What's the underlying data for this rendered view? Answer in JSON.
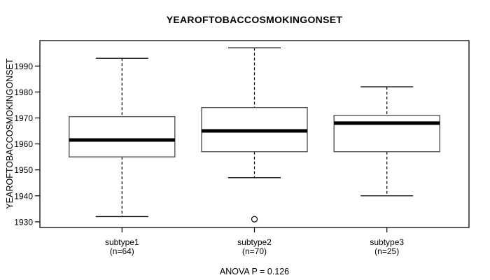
{
  "colors": {
    "foreground": "#000000",
    "background": "#ffffff"
  },
  "chart_data": {
    "type": "boxplot",
    "title": "YEAROFTOBACCOSMOKINGONSET",
    "ylabel": "YEAROFTOBACCOSMOKINGONSET",
    "annotation": "ANOVA P = 0.126",
    "ylim": [
      1927.8,
      1999.8
    ],
    "yticks": [
      1930,
      1940,
      1950,
      1960,
      1970,
      1980,
      1990
    ],
    "grid": false,
    "legend": null,
    "groups": [
      {
        "label": "subtype1",
        "sublabel": "(n=64)",
        "n": 64,
        "whisker_low": 1932,
        "q1": 1955,
        "median": 1961.5,
        "q3": 1970.5,
        "whisker_high": 1993,
        "outliers": []
      },
      {
        "label": "subtype2",
        "sublabel": "(n=70)",
        "n": 70,
        "whisker_low": 1947,
        "q1": 1957,
        "median": 1965,
        "q3": 1974,
        "whisker_high": 1997,
        "outliers": [
          1931
        ]
      },
      {
        "label": "subtype3",
        "sublabel": "(n=25)",
        "n": 25,
        "whisker_low": 1940,
        "q1": 1957,
        "median": 1968,
        "q3": 1971,
        "whisker_high": 1982,
        "outliers": []
      }
    ]
  }
}
